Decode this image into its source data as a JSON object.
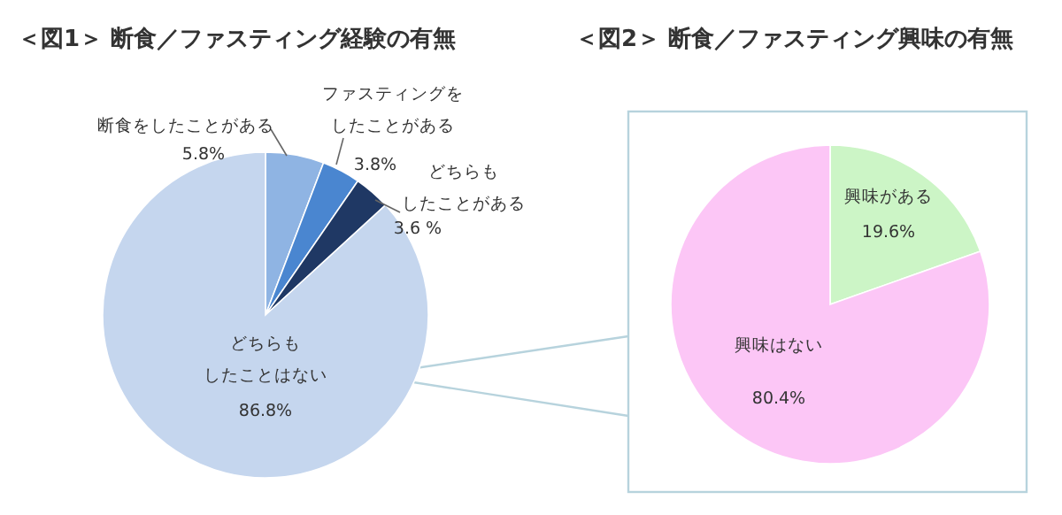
{
  "chart_data": [
    {
      "type": "pie",
      "title": "＜図1＞ 断食／ファスティング経験の有無",
      "categories": [
        "断食をしたことがある",
        "ファスティングをしたことがある",
        "どちらもしたことがある",
        "どちらもしたことはない"
      ],
      "values": [
        5.8,
        3.8,
        3.6,
        86.8
      ],
      "value_labels": [
        "5.8%",
        "3.8%",
        "3.6 %",
        "86.8%"
      ],
      "colors": [
        "#8fb4e3",
        "#4a86d0",
        "#1f3864",
        "#c5d6ee"
      ]
    },
    {
      "type": "pie",
      "title": "＜図2＞ 断食／ファスティング興味の有無",
      "categories": [
        "興味がある",
        "興味はない"
      ],
      "values": [
        19.6,
        80.4
      ],
      "value_labels": [
        "19.6%",
        "80.4%"
      ],
      "colors": [
        "#ccf5c6",
        "#fcc6f6"
      ]
    }
  ]
}
